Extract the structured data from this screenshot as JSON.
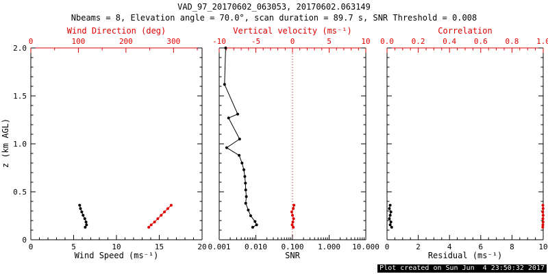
{
  "title": "VAD_97_20170602_063053, 20170602.063149",
  "subtitle": "Nbeams = 8, Elevation angle = 70.0°, scan duration = 89.7 s, SNR Threshold = 0.008",
  "footer": "Plot created on Sun Jun  4 23:50:32 2017",
  "ylabel": "z (km AGL)",
  "colors": {
    "axis": "#000000",
    "secondary_axis": "#dd0000",
    "background": "#ffffff"
  },
  "yaxis": {
    "lim": [
      0,
      2.0
    ],
    "minor_step": 0.1,
    "ticks": [
      {
        "v": 0,
        "label": "0"
      },
      {
        "v": 0.5,
        "label": "0.5"
      },
      {
        "v": 1.0,
        "label": "1.0"
      },
      {
        "v": 1.5,
        "label": "1.5"
      },
      {
        "v": 2.0,
        "label": "2.0"
      }
    ]
  },
  "chart_data": [
    {
      "type": "line",
      "id": "wind",
      "xlabel_bottom": "Wind Speed (ms⁻¹)",
      "xlabel_top": "Wind Direction (deg)",
      "ylabel": "z (km AGL)",
      "bottom_axis": {
        "scale": "linear",
        "lim": [
          0,
          20
        ],
        "minor_step": 1,
        "ticks": [
          {
            "v": 0,
            "label": "0"
          },
          {
            "v": 5,
            "label": "5"
          },
          {
            "v": 10,
            "label": "10"
          },
          {
            "v": 15,
            "label": "15"
          },
          {
            "v": 20,
            "label": "20"
          }
        ]
      },
      "top_axis": {
        "scale": "linear",
        "lim": [
          0,
          360
        ],
        "minor_step": 50,
        "ticks": [
          {
            "v": 0,
            "label": "0"
          },
          {
            "v": 100,
            "label": "100"
          },
          {
            "v": 200,
            "label": "200"
          },
          {
            "v": 300,
            "label": "300"
          }
        ]
      },
      "series": [
        {
          "name": "wind-speed",
          "axis": "bottom",
          "color": "#000000",
          "points": [
            [
              5.7,
              0.36
            ],
            [
              5.8,
              0.325
            ],
            [
              5.95,
              0.29
            ],
            [
              6.1,
              0.255
            ],
            [
              6.3,
              0.22
            ],
            [
              6.45,
              0.185
            ],
            [
              6.5,
              0.155
            ],
            [
              6.35,
              0.13
            ]
          ]
        },
        {
          "name": "wind-direction",
          "axis": "top",
          "color": "#dd0000",
          "points": [
            [
              295,
              0.36
            ],
            [
              288,
              0.325
            ],
            [
              281,
              0.29
            ],
            [
              274,
              0.255
            ],
            [
              267,
              0.22
            ],
            [
              260,
              0.185
            ],
            [
              253,
              0.155
            ],
            [
              248,
              0.13
            ]
          ]
        }
      ]
    },
    {
      "type": "line",
      "id": "snr",
      "xlabel_bottom": "SNR",
      "xlabel_top": "Vertical velocity (ms⁻¹)",
      "bottom_axis": {
        "scale": "log",
        "lim": [
          0.001,
          10
        ],
        "ticks": [
          {
            "v": 0.001,
            "label": "0.001"
          },
          {
            "v": 0.01,
            "label": "0.010"
          },
          {
            "v": 0.1,
            "label": "0.100"
          },
          {
            "v": 1,
            "label": "1.000"
          },
          {
            "v": 10,
            "label": "10.000"
          }
        ]
      },
      "top_axis": {
        "scale": "linear",
        "lim": [
          -10,
          10
        ],
        "minor_step": 1,
        "ticks": [
          {
            "v": -10,
            "label": "-10"
          },
          {
            "v": -5,
            "label": "-5"
          },
          {
            "v": 0,
            "label": "0"
          },
          {
            "v": 5,
            "label": "5"
          },
          {
            "v": 10,
            "label": "10"
          }
        ]
      },
      "refline_top": {
        "v": 0,
        "color": "#dd0000",
        "style": "dotted"
      },
      "series": [
        {
          "name": "snr-profile",
          "axis": "bottom",
          "color": "#000000",
          "points": [
            [
              0.0015,
              2.0
            ],
            [
              0.0014,
              1.62
            ],
            [
              0.0032,
              1.31
            ],
            [
              0.0018,
              1.27
            ],
            [
              0.0036,
              1.05
            ],
            [
              0.0016,
              0.96
            ],
            [
              0.0035,
              0.88
            ],
            [
              0.0042,
              0.8
            ],
            [
              0.0047,
              0.73
            ],
            [
              0.005,
              0.66
            ],
            [
              0.0052,
              0.59
            ],
            [
              0.0053,
              0.52
            ],
            [
              0.0055,
              0.45
            ],
            [
              0.0053,
              0.38
            ],
            [
              0.0062,
              0.31
            ],
            [
              0.0072,
              0.25
            ],
            [
              0.0095,
              0.19
            ],
            [
              0.0105,
              0.155
            ],
            [
              0.0082,
              0.13
            ]
          ]
        },
        {
          "name": "vertical-velocity",
          "axis": "top",
          "color": "#dd0000",
          "points": [
            [
              0.2,
              0.36
            ],
            [
              0.1,
              0.325
            ],
            [
              -0.1,
              0.29
            ],
            [
              0,
              0.255
            ],
            [
              0.15,
              0.22
            ],
            [
              0.05,
              0.185
            ],
            [
              -0.05,
              0.155
            ],
            [
              0.1,
              0.13
            ]
          ]
        }
      ]
    },
    {
      "type": "line",
      "id": "residual",
      "xlabel_bottom": "Residual (ms⁻¹)",
      "xlabel_top": "Correlation",
      "bottom_axis": {
        "scale": "linear",
        "lim": [
          0,
          10
        ],
        "minor_step": 0.5,
        "ticks": [
          {
            "v": 0,
            "label": "0"
          },
          {
            "v": 2,
            "label": "2"
          },
          {
            "v": 4,
            "label": "4"
          },
          {
            "v": 6,
            "label": "6"
          },
          {
            "v": 8,
            "label": "8"
          },
          {
            "v": 10,
            "label": "10"
          }
        ]
      },
      "top_axis": {
        "scale": "linear",
        "lim": [
          0,
          1
        ],
        "minor_step": 0.05,
        "ticks": [
          {
            "v": 0,
            "label": "0.0"
          },
          {
            "v": 0.2,
            "label": "0.2"
          },
          {
            "v": 0.4,
            "label": "0.4"
          },
          {
            "v": 0.6,
            "label": "0.6"
          },
          {
            "v": 0.8,
            "label": "0.8"
          },
          {
            "v": 1,
            "label": "1.0"
          }
        ]
      },
      "series": [
        {
          "name": "residual-profile",
          "axis": "bottom",
          "color": "#000000",
          "points": [
            [
              0.2,
              0.36
            ],
            [
              0.15,
              0.325
            ],
            [
              0.25,
              0.29
            ],
            [
              0.2,
              0.255
            ],
            [
              0.15,
              0.22
            ],
            [
              0.25,
              0.185
            ],
            [
              0.2,
              0.155
            ],
            [
              0.3,
              0.13
            ]
          ]
        },
        {
          "name": "correlation",
          "axis": "top",
          "color": "#dd0000",
          "points": [
            [
              0.998,
              0.36
            ],
            [
              0.999,
              0.325
            ],
            [
              0.997,
              0.29
            ],
            [
              0.999,
              0.255
            ],
            [
              0.998,
              0.22
            ],
            [
              0.999,
              0.185
            ],
            [
              0.998,
              0.155
            ],
            [
              0.997,
              0.13
            ]
          ]
        }
      ]
    }
  ]
}
